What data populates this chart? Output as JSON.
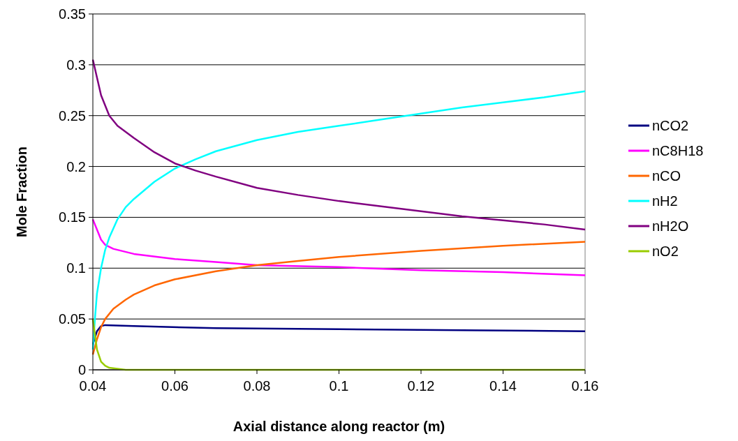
{
  "chart_data": {
    "type": "line",
    "xlabel": "Axial distance along reactor (m)",
    "ylabel": "Mole Fraction",
    "xlim": [
      0.04,
      0.16
    ],
    "xticks": [
      0.04,
      0.06,
      0.08,
      0.1,
      0.12,
      0.14,
      0.16
    ],
    "ylim": [
      0,
      0.35
    ],
    "yticks": [
      0,
      0.05,
      0.1,
      0.15,
      0.2,
      0.25,
      0.3,
      0.35
    ],
    "grid": "y",
    "legend": "right",
    "marker": "none",
    "line_style": "solid",
    "series": [
      {
        "name": "nCO2",
        "color": "#000080",
        "x": [
          0.04,
          0.041,
          0.042,
          0.043,
          0.05,
          0.07,
          0.1,
          0.13,
          0.16
        ],
        "values": [
          0.025,
          0.038,
          0.043,
          0.044,
          0.043,
          0.041,
          0.04,
          0.039,
          0.038
        ]
      },
      {
        "name": "nC8H18",
        "color": "#ff00ff",
        "x": [
          0.04,
          0.041,
          0.042,
          0.043,
          0.045,
          0.05,
          0.06,
          0.07,
          0.08,
          0.1,
          0.12,
          0.14,
          0.16
        ],
        "values": [
          0.148,
          0.138,
          0.128,
          0.123,
          0.119,
          0.114,
          0.109,
          0.106,
          0.103,
          0.101,
          0.098,
          0.096,
          0.093
        ]
      },
      {
        "name": "nCO",
        "color": "#ff6600",
        "x": [
          0.04,
          0.041,
          0.042,
          0.043,
          0.045,
          0.048,
          0.05,
          0.055,
          0.06,
          0.07,
          0.08,
          0.09,
          0.1,
          0.12,
          0.14,
          0.16
        ],
        "values": [
          0.015,
          0.03,
          0.042,
          0.05,
          0.06,
          0.069,
          0.074,
          0.083,
          0.089,
          0.097,
          0.103,
          0.107,
          0.111,
          0.117,
          0.122,
          0.126
        ]
      },
      {
        "name": "nH2",
        "color": "#00ffff",
        "x": [
          0.04,
          0.0405,
          0.041,
          0.042,
          0.043,
          0.044,
          0.046,
          0.048,
          0.05,
          0.055,
          0.06,
          0.065,
          0.07,
          0.08,
          0.09,
          0.1,
          0.11,
          0.12,
          0.13,
          0.14,
          0.15,
          0.16
        ],
        "values": [
          0.02,
          0.05,
          0.075,
          0.1,
          0.118,
          0.13,
          0.148,
          0.16,
          0.168,
          0.185,
          0.198,
          0.207,
          0.215,
          0.226,
          0.234,
          0.24,
          0.246,
          0.252,
          0.258,
          0.263,
          0.268,
          0.274
        ]
      },
      {
        "name": "nH2O",
        "color": "#800080",
        "x": [
          0.04,
          0.042,
          0.044,
          0.046,
          0.05,
          0.055,
          0.06,
          0.065,
          0.07,
          0.08,
          0.09,
          0.1,
          0.11,
          0.12,
          0.13,
          0.14,
          0.15,
          0.16
        ],
        "values": [
          0.305,
          0.27,
          0.25,
          0.24,
          0.228,
          0.214,
          0.203,
          0.196,
          0.19,
          0.179,
          0.172,
          0.166,
          0.161,
          0.156,
          0.151,
          0.147,
          0.143,
          0.138
        ]
      },
      {
        "name": "nO2",
        "color": "#99cc00",
        "x": [
          0.04,
          0.0405,
          0.041,
          0.042,
          0.043,
          0.044,
          0.046,
          0.048,
          0.16
        ],
        "values": [
          0.05,
          0.035,
          0.02,
          0.008,
          0.004,
          0.002,
          0.001,
          0,
          0
        ]
      }
    ]
  }
}
